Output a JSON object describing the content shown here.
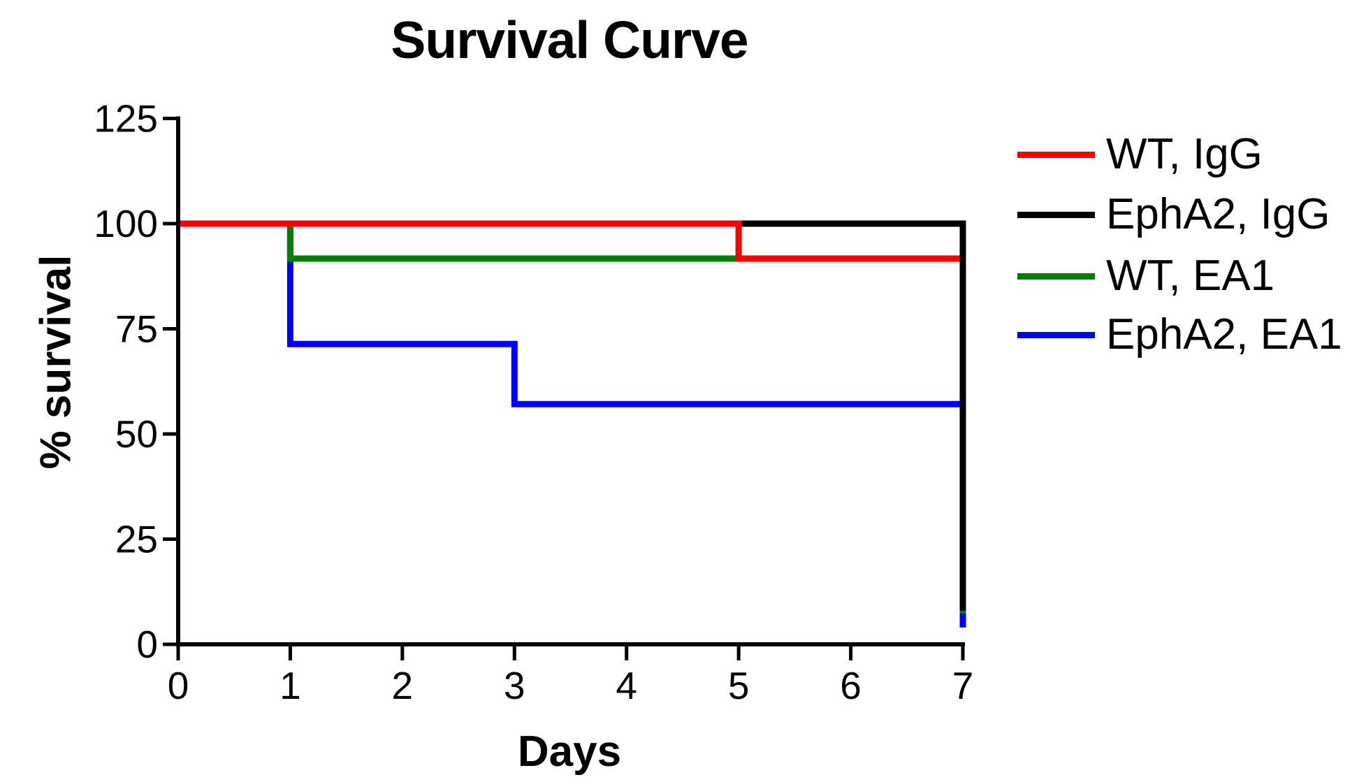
{
  "figure": {
    "title": "Survival Curve",
    "x_axis_label": "Days",
    "y_axis_label": "% survival"
  },
  "legend": {
    "position": "right",
    "items": [
      {
        "label": "WT, IgG",
        "color": "#FF0000"
      },
      {
        "label": "EphA2, IgG",
        "color": "#000000"
      },
      {
        "label": "WT, EA1",
        "color": "#008000"
      },
      {
        "label": "EphA2, EA1",
        "color": "#0000FF"
      }
    ]
  },
  "chart_data": {
    "type": "line",
    "subtype": "kaplan-meier-survival-step",
    "title": "Survival Curve",
    "xlabel": "Days",
    "ylabel": "% survival",
    "xlim": [
      0,
      7
    ],
    "ylim": [
      0,
      125
    ],
    "x_ticks": [
      0,
      1,
      2,
      3,
      4,
      5,
      6,
      7
    ],
    "y_ticks": [
      0,
      25,
      50,
      75,
      100,
      125
    ],
    "grid": false,
    "legend_position": "right",
    "axis_color": "#000000",
    "series": [
      {
        "name": "WT, IgG",
        "color": "#FF0000",
        "steps": [
          [
            0,
            100
          ],
          [
            5,
            100
          ],
          [
            5,
            91.7
          ],
          [
            7,
            91.7
          ]
        ]
      },
      {
        "name": "EphA2, IgG",
        "color": "#000000",
        "steps": [
          [
            0,
            100
          ],
          [
            7,
            100
          ],
          [
            7,
            8
          ]
        ]
      },
      {
        "name": "WT, EA1",
        "color": "#008000",
        "steps": [
          [
            0,
            100
          ],
          [
            1,
            100
          ],
          [
            1,
            91.7
          ],
          [
            7,
            91.7
          ],
          [
            7,
            7.3
          ]
        ]
      },
      {
        "name": "EphA2, EA1",
        "color": "#0000FF",
        "steps": [
          [
            0,
            100
          ],
          [
            1,
            100
          ],
          [
            1,
            71.4
          ],
          [
            3,
            71.4
          ],
          [
            3,
            57.1
          ],
          [
            7,
            57.1
          ],
          [
            7,
            4
          ]
        ]
      }
    ],
    "draw_order": [
      "EphA2, EA1",
      "WT, EA1",
      "EphA2, IgG",
      "WT, IgG"
    ]
  }
}
